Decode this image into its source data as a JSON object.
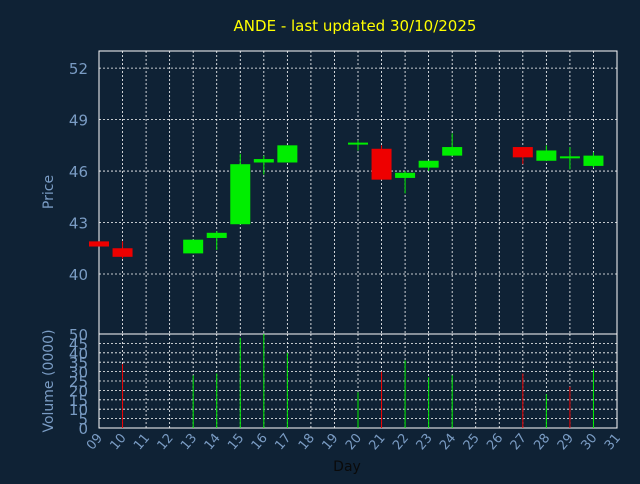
{
  "chart_data": {
    "type": "candlestick",
    "title": "ANDE - last updated 30/10/2025",
    "background_color": "#0f2235",
    "title_color": "#ffff00",
    "axis_label_color": "#7a9cc4",
    "up_color": "#00ee00",
    "down_color": "#ee0000",
    "grid": true,
    "grid_color": "#ffffff",
    "grid_style": "dotted",
    "xlabel": "Day",
    "x_ticks": [
      "09",
      "10",
      "11",
      "12",
      "13",
      "14",
      "15",
      "16",
      "17",
      "18",
      "19",
      "20",
      "21",
      "22",
      "23",
      "24",
      "25",
      "26",
      "27",
      "28",
      "29",
      "30",
      "31"
    ],
    "price_panel": {
      "ylabel": "Price",
      "ylim": [
        36.5,
        53
      ],
      "y_ticks": [
        "40",
        "43",
        "46",
        "49",
        "52"
      ],
      "candles": [
        {
          "day": 9,
          "open": 41.9,
          "high": 41.9,
          "low": 41.6,
          "close": 41.6
        },
        {
          "day": 10,
          "open": 41.5,
          "high": 41.9,
          "low": 40.9,
          "close": 41.0
        },
        {
          "day": 13,
          "open": 41.2,
          "high": 42.0,
          "low": 41.2,
          "close": 42.0
        },
        {
          "day": 14,
          "open": 42.1,
          "high": 42.5,
          "low": 41.4,
          "close": 42.4
        },
        {
          "day": 15,
          "open": 42.9,
          "high": 47.0,
          "low": 42.9,
          "close": 46.4
        },
        {
          "day": 16,
          "open": 46.5,
          "high": 46.9,
          "low": 45.8,
          "close": 46.7
        },
        {
          "day": 17,
          "open": 46.5,
          "high": 47.5,
          "low": 46.5,
          "close": 47.5
        },
        {
          "day": 20,
          "open": 47.5,
          "high": 47.8,
          "low": 47.2,
          "close": 47.6
        },
        {
          "day": 21,
          "open": 47.3,
          "high": 47.5,
          "low": 45.5,
          "close": 45.5
        },
        {
          "day": 22,
          "open": 45.6,
          "high": 46.0,
          "low": 44.7,
          "close": 45.9
        },
        {
          "day": 23,
          "open": 46.2,
          "high": 46.6,
          "low": 46.0,
          "close": 46.6
        },
        {
          "day": 24,
          "open": 46.9,
          "high": 48.2,
          "low": 46.9,
          "close": 47.4
        },
        {
          "day": 27,
          "open": 47.4,
          "high": 47.4,
          "low": 46.4,
          "close": 46.8
        },
        {
          "day": 28,
          "open": 46.6,
          "high": 47.5,
          "low": 46.6,
          "close": 47.2
        },
        {
          "day": 29,
          "open": 46.8,
          "high": 47.4,
          "low": 46.1,
          "close": 46.8
        },
        {
          "day": 30,
          "open": 46.3,
          "high": 47.1,
          "low": 46.2,
          "close": 46.9
        }
      ]
    },
    "volume_panel": {
      "ylabel": "Volume (0000)",
      "ylim": [
        0,
        50
      ],
      "y_ticks": [
        "0",
        "5",
        "10",
        "15",
        "20",
        "25",
        "30",
        "35",
        "40",
        "45",
        "50"
      ],
      "bars": [
        {
          "day": 10,
          "value": 34,
          "dir": "down"
        },
        {
          "day": 13,
          "value": 28,
          "dir": "up"
        },
        {
          "day": 14,
          "value": 29,
          "dir": "up"
        },
        {
          "day": 15,
          "value": 48,
          "dir": "up"
        },
        {
          "day": 16,
          "value": 50,
          "dir": "up"
        },
        {
          "day": 17,
          "value": 40,
          "dir": "up"
        },
        {
          "day": 20,
          "value": 19,
          "dir": "up"
        },
        {
          "day": 21,
          "value": 30,
          "dir": "down"
        },
        {
          "day": 22,
          "value": 36,
          "dir": "up"
        },
        {
          "day": 23,
          "value": 27,
          "dir": "up"
        },
        {
          "day": 24,
          "value": 28,
          "dir": "up"
        },
        {
          "day": 27,
          "value": 29,
          "dir": "down"
        },
        {
          "day": 28,
          "value": 18,
          "dir": "up"
        },
        {
          "day": 29,
          "value": 22,
          "dir": "down"
        },
        {
          "day": 30,
          "value": 31,
          "dir": "up"
        }
      ]
    }
  }
}
